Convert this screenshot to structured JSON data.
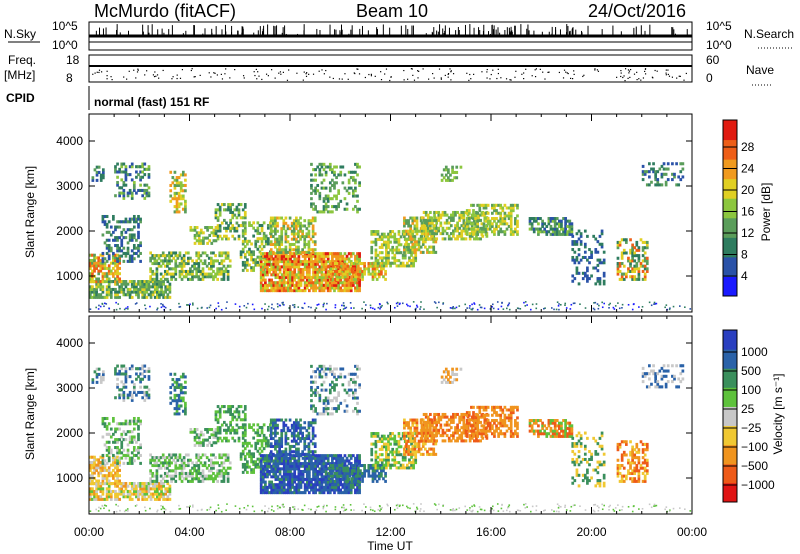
{
  "header": {
    "station": "McMurdo (fitACF)",
    "beam": "Beam 10",
    "date": "24/Oct/2016"
  },
  "panels": {
    "nsky_label": "N.Sky",
    "nsky_ticks": [
      "10^5",
      "10^0"
    ],
    "nsearch_label": "N.Search",
    "nsearch_ticks": [
      "10^5",
      "10^0"
    ],
    "freq_label": "Freq.",
    "freq_unit": "[MHz]",
    "freq_ticks": [
      "18",
      "8"
    ],
    "nave_label": "Nave",
    "nave_ticks": [
      "60",
      "0"
    ],
    "cpid_label": "CPID",
    "cpid_text": "normal (fast) 151 RF"
  },
  "chart_data": [
    {
      "type": "heatmap",
      "name": "power",
      "ylabel": "Slant Range [km]",
      "yticks": [
        "1000",
        "2000",
        "3000",
        "4000"
      ],
      "ylim": [
        200,
        4600
      ],
      "xticks": [
        "00:00",
        "04:00",
        "08:00",
        "12:00",
        "16:00",
        "20:00",
        "00:00"
      ],
      "xlim_hours": [
        0,
        24
      ],
      "colorbar": {
        "label": "Power [dB]",
        "ticks": [
          "4",
          "8",
          "12",
          "16",
          "20",
          "24",
          "28"
        ],
        "colors": [
          "#1a1aff",
          "#2a52a8",
          "#2e7c5f",
          "#5a9d5a",
          "#8cc63e",
          "#e0cf22",
          "#f09a1e",
          "#ee5e17",
          "#e01a10"
        ]
      }
    },
    {
      "type": "heatmap",
      "name": "velocity",
      "ylabel": "Slant Range [km]",
      "yticks": [
        "1000",
        "2000",
        "3000",
        "4000"
      ],
      "ylim": [
        200,
        4600
      ],
      "xticks": [
        "00:00",
        "04:00",
        "08:00",
        "12:00",
        "16:00",
        "20:00",
        "00:00"
      ],
      "xlabel": "Time UT",
      "xlim_hours": [
        0,
        24
      ],
      "colorbar": {
        "label": "Velocity [m s⁻¹]",
        "ticks": [
          "1000",
          "500",
          "100",
          "25",
          "−25",
          "−100",
          "−500",
          "−1000"
        ],
        "colors": [
          "#2a3fc0",
          "#2a62a8",
          "#3a8f5c",
          "#5ec23c",
          "#c8c8c8",
          "#f0c832",
          "#f0941e",
          "#ee5a18",
          "#e01414"
        ]
      }
    }
  ]
}
